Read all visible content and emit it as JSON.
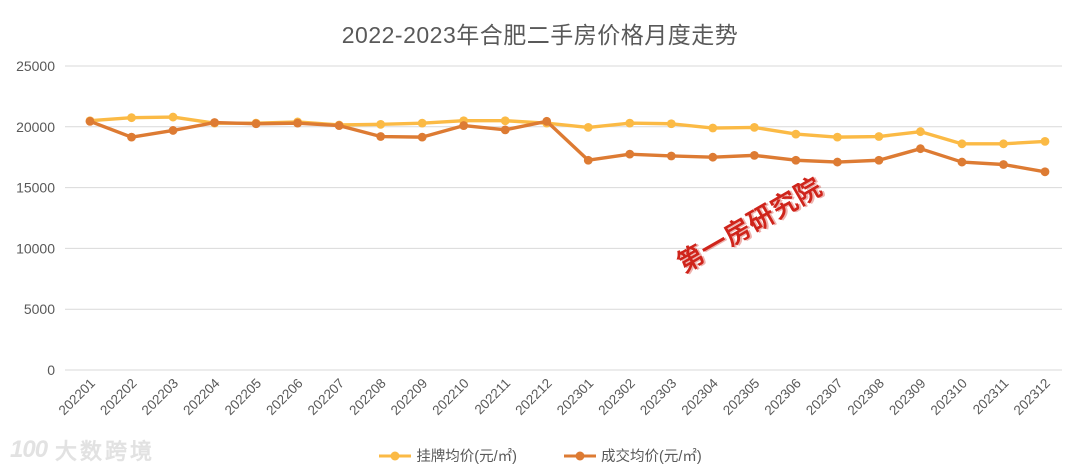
{
  "chart_data": {
    "type": "line",
    "title": "2022-2023年合肥二手房价格月度走势",
    "xlabel": "",
    "ylabel": "",
    "ylim": [
      0,
      25000
    ],
    "yticks": [
      0,
      5000,
      10000,
      15000,
      20000,
      25000
    ],
    "grid": true,
    "legend_position": "bottom",
    "categories": [
      "202201",
      "202202",
      "202203",
      "202204",
      "202205",
      "202206",
      "202207",
      "202208",
      "202209",
      "202210",
      "202211",
      "202212",
      "202301",
      "202302",
      "202303",
      "202304",
      "202305",
      "202306",
      "202307",
      "202308",
      "202309",
      "202310",
      "202311",
      "202312"
    ],
    "series": [
      {
        "name": "挂牌均价(元/㎡)",
        "color": "#FBBA45",
        "values": [
          20500,
          20750,
          20800,
          20300,
          20300,
          20400,
          20150,
          20200,
          20300,
          20500,
          20500,
          20300,
          19950,
          20300,
          20250,
          19900,
          19950,
          19400,
          19150,
          19200,
          19600,
          18600,
          18600,
          18800
        ]
      },
      {
        "name": "成交均价(元/㎡)",
        "color": "#DD7B33",
        "values": [
          20450,
          19150,
          19700,
          20350,
          20250,
          20300,
          20100,
          19200,
          19150,
          20100,
          19750,
          20450,
          17250,
          17750,
          17600,
          17500,
          17650,
          17250,
          17100,
          17250,
          18200,
          17100,
          16900,
          16300
        ]
      }
    ]
  },
  "watermark": {
    "text": "第一房研究院",
    "color": "#cf241b"
  },
  "logo": {
    "icon": "100",
    "text": "大数跨境"
  },
  "style_colors": {
    "axis_text": "#595959",
    "gridline": "#d9d9d9",
    "title_text": "#595959"
  }
}
